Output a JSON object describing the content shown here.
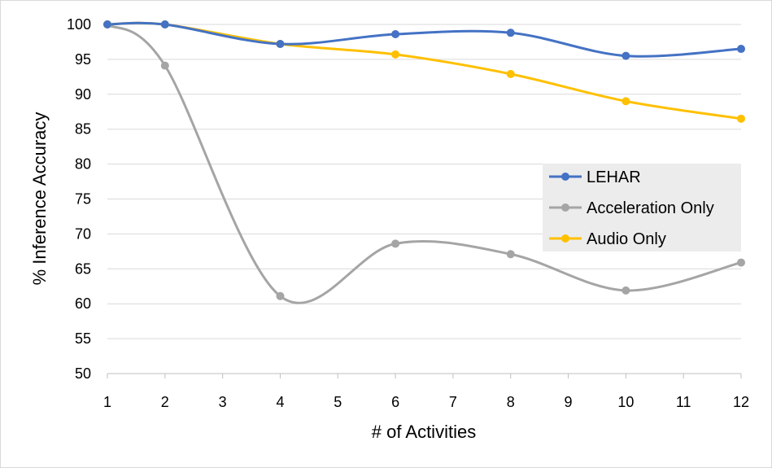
{
  "chart_data": {
    "type": "line",
    "title": "",
    "xlabel": "# of Activities",
    "ylabel": "% Inference Accuracy",
    "x_ticks": [
      1,
      2,
      3,
      4,
      5,
      6,
      7,
      8,
      9,
      10,
      11,
      12
    ],
    "y_ticks": [
      50,
      55,
      60,
      65,
      70,
      75,
      80,
      85,
      90,
      95,
      100
    ],
    "xlim": [
      1,
      12
    ],
    "ylim": [
      50,
      100
    ],
    "grid": "horizontal",
    "legend_position": "right",
    "smoothed": true,
    "series": [
      {
        "name": "LEHAR",
        "color": "#4472C4",
        "x": [
          1,
          2,
          4,
          6,
          8,
          10,
          12
        ],
        "values": [
          100,
          100,
          97.2,
          98.6,
          98.8,
          95.5,
          96.5
        ]
      },
      {
        "name": "Acceleration Only",
        "color": "#A5A5A5",
        "x": [
          1,
          2,
          4,
          6,
          8,
          10,
          12
        ],
        "values": [
          100,
          94.1,
          61.1,
          68.6,
          67.1,
          61.9,
          65.9
        ]
      },
      {
        "name": "Audio Only",
        "color": "#FFC000",
        "x": [
          1,
          2,
          4,
          6,
          8,
          10,
          12
        ],
        "values": [
          100,
          100,
          97.2,
          95.7,
          92.9,
          89.0,
          86.5
        ]
      }
    ]
  }
}
